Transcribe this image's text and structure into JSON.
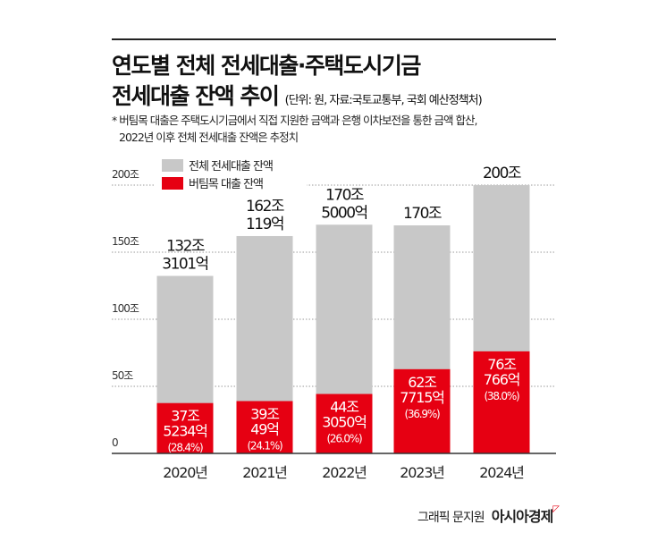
{
  "title_line1": "연도별 전체 전세대출·주택도시기금",
  "title_line2": "전세대출 잔액 추이",
  "unit_source": "(단위: 원, 자료:국토교통부, 국회 예산정책처)",
  "note_line1": "* 버팀목 대출은 주택도시기금에서 직접 지원한 금액과 은행 이차보전을 통한 금액 합산,",
  "note_line2": "2022년 이후 전체 전세대출 잔액은 추정치",
  "credit": "그래픽 문지원",
  "brand": "아시아경제",
  "colors": {
    "total": "#c8c8c8",
    "butimok": "#e60012"
  },
  "chart_data": {
    "type": "bar",
    "stacked": "overlay",
    "grid": true,
    "legend": "top-left",
    "ylim": [
      0,
      200
    ],
    "yticks": [
      "0",
      "50조",
      "100조",
      "150조",
      "200조"
    ],
    "categories": [
      "2020년",
      "2021년",
      "2022년",
      "2023년",
      "2024년"
    ],
    "series": [
      {
        "name": "전체 전세대출 잔액",
        "values": [
          132.3101,
          162.0119,
          170.5,
          170,
          200
        ],
        "labels": [
          [
            "132조",
            "3101억"
          ],
          [
            "162조",
            "119억"
          ],
          [
            "170조",
            "5000억"
          ],
          [
            "170조"
          ],
          [
            "200조"
          ]
        ]
      },
      {
        "name": "버팀목 대출 잔액",
        "values": [
          37.5234,
          39.0049,
          44.305,
          62.7715,
          76.0766
        ],
        "labels": [
          [
            "37조",
            "5234억",
            "(28.4%)"
          ],
          [
            "39조",
            "49억",
            "(24.1%)"
          ],
          [
            "44조",
            "3050억",
            "(26.0%)"
          ],
          [
            "62조",
            "7715억",
            "(36.9%)"
          ],
          [
            "76조",
            "766억",
            "(38.0%)"
          ]
        ]
      }
    ]
  }
}
